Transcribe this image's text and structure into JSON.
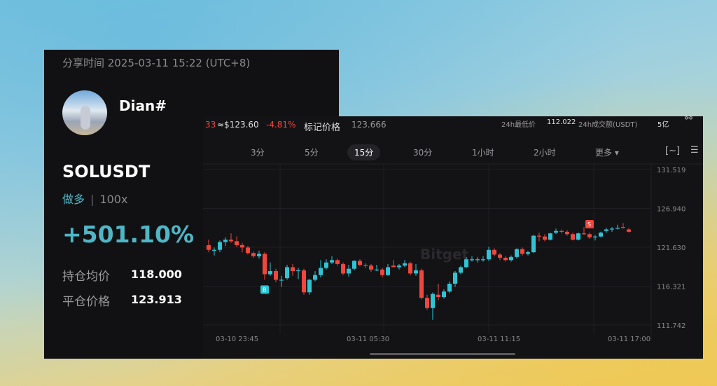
{
  "card": {
    "share_time": "分享时间 2025-03-11 15:22 (UTC+8)",
    "username": "Dian#",
    "symbol": "SOLUSDT",
    "direction": "做多",
    "leverage": "100x",
    "pnl_percent": "+501.10%",
    "entry_label": "持仓均价",
    "entry_value": "118.000",
    "close_label": "平仓价格",
    "close_value": "123.913",
    "accent": "#4fb6c6"
  },
  "chart_header": {
    "last_price_partial": "33",
    "usd_price": "≈$123.60",
    "change": "-4.81%",
    "mark_label": "标记价格",
    "mark_value": "123.666",
    "low_label": "24h最低价",
    "low_value": "112.022",
    "vol_label": "24h成交额(USDT)",
    "vol_value": "5亿"
  },
  "intervals": [
    {
      "label": "3分"
    },
    {
      "label": "5分"
    },
    {
      "label": "15分",
      "selected": true
    },
    {
      "label": "30分"
    },
    {
      "label": "1小时"
    },
    {
      "label": "2小时"
    },
    {
      "label": "更多 ▾"
    }
  ],
  "icons": {
    "share": "share-icon",
    "indicator": "indicator-icon",
    "settings": "list-settings-icon"
  },
  "chart_data": {
    "type": "candlestick",
    "watermark": "Bitget",
    "ylim": [
      111.742,
      131.519
    ],
    "y_ticks": [
      "131.519",
      "126.940",
      "121.630",
      "116.321",
      "111.742"
    ],
    "x_ticks": [
      "03-10 23:45",
      "03-11 05:30",
      "03-11 11:15",
      "03-11 17:00"
    ],
    "up_color": "#2fc4d4",
    "down_color": "#f0463c",
    "markers": [
      {
        "label": "B",
        "candle": 10,
        "color": "#2fc4d4"
      },
      {
        "label": "S",
        "candle": 68,
        "color": "#f0463c"
      }
    ],
    "ohlc": [
      [
        121.9,
        122.6,
        121.0,
        121.3
      ],
      [
        121.3,
        121.6,
        120.6,
        121.3
      ],
      [
        121.3,
        122.5,
        121.0,
        122.3
      ],
      [
        122.3,
        122.9,
        121.8,
        122.6
      ],
      [
        122.6,
        123.4,
        122.2,
        122.4
      ],
      [
        122.4,
        123.0,
        121.7,
        121.9
      ],
      [
        121.9,
        122.2,
        121.0,
        121.6
      ],
      [
        121.6,
        121.8,
        120.7,
        120.9
      ],
      [
        120.9,
        121.1,
        120.3,
        120.5
      ],
      [
        120.5,
        121.2,
        120.2,
        120.8
      ],
      [
        120.8,
        121.0,
        117.5,
        118.2
      ],
      [
        118.2,
        119.7,
        118.0,
        118.6
      ],
      [
        118.6,
        118.9,
        117.2,
        117.5
      ],
      [
        117.5,
        118.0,
        116.6,
        117.5
      ],
      [
        117.7,
        119.4,
        117.5,
        119.1
      ],
      [
        119.1,
        119.5,
        118.0,
        118.6
      ],
      [
        118.7,
        119.0,
        117.6,
        118.7
      ],
      [
        118.7,
        118.9,
        115.6,
        115.9
      ],
      [
        115.9,
        117.6,
        115.6,
        117.5
      ],
      [
        117.5,
        118.6,
        117.3,
        118.1
      ],
      [
        118.1,
        120.0,
        117.8,
        119.0
      ],
      [
        119.0,
        120.1,
        118.8,
        119.7
      ],
      [
        119.7,
        120.5,
        119.5,
        120.0
      ],
      [
        120.0,
        120.2,
        119.3,
        119.5
      ],
      [
        119.5,
        119.7,
        118.1,
        118.3
      ],
      [
        118.3,
        119.4,
        117.9,
        118.9
      ],
      [
        118.9,
        120.0,
        118.7,
        119.9
      ],
      [
        119.9,
        120.1,
        119.2,
        119.4
      ],
      [
        119.4,
        119.6,
        119.0,
        119.3
      ],
      [
        119.3,
        119.5,
        118.5,
        118.8
      ],
      [
        118.8,
        119.4,
        118.6,
        118.8
      ],
      [
        118.8,
        119.0,
        117.8,
        118.1
      ],
      [
        118.1,
        119.5,
        118.0,
        119.1
      ],
      [
        119.3,
        120.0,
        119.1,
        119.1
      ],
      [
        119.1,
        119.5,
        118.8,
        119.3
      ],
      [
        119.3,
        120.0,
        119.1,
        119.6
      ],
      [
        119.6,
        119.8,
        118.1,
        118.3
      ],
      [
        118.3,
        119.5,
        118.0,
        118.7
      ],
      [
        118.7,
        118.9,
        115.0,
        115.2
      ],
      [
        115.2,
        115.6,
        113.7,
        113.9
      ],
      [
        113.9,
        115.9,
        112.4,
        115.7
      ],
      [
        115.6,
        117.0,
        114.9,
        115.3
      ],
      [
        115.3,
        116.3,
        115.1,
        116.0
      ],
      [
        116.0,
        117.3,
        115.8,
        117.0
      ],
      [
        117.0,
        118.6,
        116.6,
        118.4
      ],
      [
        118.4,
        119.3,
        118.2,
        119.1
      ],
      [
        119.1,
        120.4,
        119.0,
        120.1
      ],
      [
        120.1,
        120.5,
        119.8,
        120.1
      ],
      [
        120.1,
        120.4,
        119.7,
        120.1
      ],
      [
        120.1,
        120.5,
        119.8,
        120.1
      ],
      [
        120.1,
        121.7,
        119.9,
        121.3
      ],
      [
        121.3,
        121.5,
        120.5,
        120.7
      ],
      [
        120.7,
        120.9,
        120.0,
        120.3
      ],
      [
        120.3,
        120.5,
        119.8,
        120.0
      ],
      [
        120.0,
        120.6,
        119.8,
        120.4
      ],
      [
        120.4,
        121.5,
        120.2,
        121.4
      ],
      [
        121.4,
        121.6,
        120.6,
        120.8
      ],
      [
        120.8,
        121.2,
        120.6,
        121.0
      ],
      [
        121.0,
        123.2,
        120.9,
        123.1
      ],
      [
        123.1,
        123.5,
        122.4,
        123.0
      ],
      [
        123.0,
        123.3,
        122.4,
        122.6
      ],
      [
        122.6,
        123.5,
        122.5,
        123.4
      ],
      [
        123.5,
        124.0,
        123.3,
        123.7
      ],
      [
        123.7,
        123.9,
        123.4,
        123.6
      ],
      [
        123.6,
        123.8,
        123.1,
        123.3
      ],
      [
        123.3,
        123.5,
        122.5,
        122.6
      ],
      [
        122.6,
        123.5,
        122.5,
        123.4
      ],
      [
        123.4,
        124.2,
        123.2,
        123.3
      ],
      [
        123.3,
        123.5,
        122.7,
        122.9
      ],
      [
        122.9,
        123.2,
        122.5,
        123.0
      ],
      [
        123.0,
        123.6,
        122.9,
        123.5
      ],
      [
        123.7,
        124.1,
        123.5,
        123.9
      ],
      [
        123.9,
        124.2,
        123.6,
        124.0
      ],
      [
        124.1,
        124.5,
        123.9,
        124.1
      ],
      [
        124.2,
        124.7,
        124.0,
        124.1
      ],
      [
        123.9,
        124.1,
        123.5,
        123.6
      ]
    ]
  }
}
